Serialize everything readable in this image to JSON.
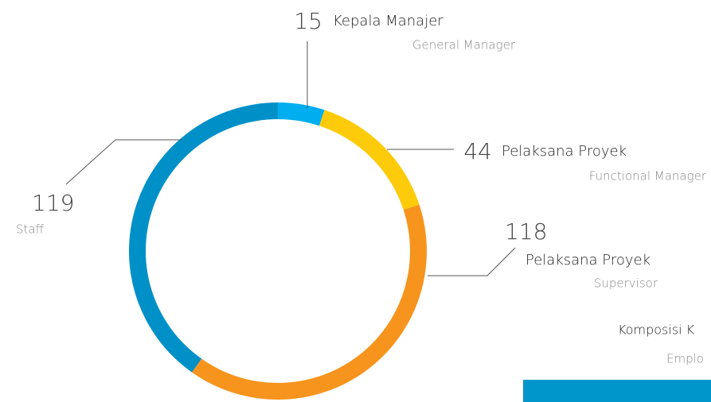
{
  "chart_data": {
    "type": "donut",
    "values": [
      15,
      44,
      118,
      119
    ],
    "categories": [
      "Kepala Manajer",
      "Pelaksana Proyek",
      "Pelaksana Proyek",
      "Staff"
    ],
    "subcategories": [
      "General Manager",
      "Functional Manager",
      "Supervisor",
      null
    ],
    "colors": [
      "#00aeef",
      "#fecb0a",
      "#f7941d",
      "#0090c8"
    ]
  },
  "panel": {
    "title": "Komposisi K",
    "subtitle": "Emplo"
  }
}
